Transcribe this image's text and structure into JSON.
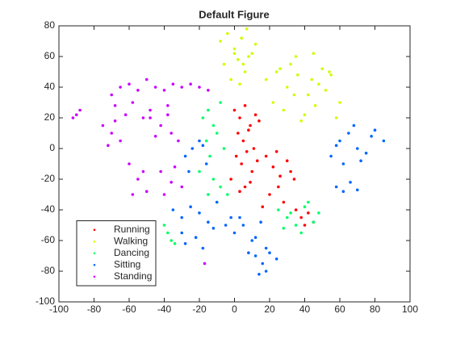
{
  "chart_data": {
    "type": "scatter",
    "title": "Default Figure",
    "xlim": [
      -100,
      100
    ],
    "xticks": [
      -100,
      -80,
      -60,
      -40,
      -20,
      0,
      20,
      40,
      60,
      80,
      100
    ],
    "ylim": [
      -100,
      80
    ],
    "yticks": [
      -100,
      -80,
      -60,
      -40,
      -20,
      0,
      20,
      40,
      60,
      80
    ],
    "legend": "southwest",
    "series": [
      {
        "name": "Running",
        "color": "#ff0000",
        "x": [
          0,
          3,
          6,
          9,
          12,
          2,
          5,
          8,
          11,
          14,
          1,
          4,
          7,
          10,
          13,
          -2,
          6,
          3,
          9,
          18,
          22,
          26,
          30,
          34,
          20,
          24,
          28,
          32,
          16,
          25,
          35,
          38,
          42,
          45,
          40
        ],
        "values": [
          25,
          20,
          28,
          15,
          22,
          10,
          5,
          12,
          0,
          18,
          -5,
          -10,
          -2,
          -15,
          -8,
          -20,
          -25,
          -28,
          -22,
          -5,
          -12,
          -18,
          -8,
          -20,
          -30,
          -2,
          -35,
          -15,
          -38,
          -25,
          -40,
          -45,
          -42,
          -48,
          -50
        ]
      },
      {
        "name": "Walking",
        "color": "#ccff00",
        "x": [
          -8,
          -4,
          0,
          4,
          8,
          12,
          -6,
          2,
          6,
          10,
          -2,
          3,
          7,
          0,
          5,
          18,
          24,
          30,
          36,
          42,
          48,
          54,
          60,
          22,
          28,
          34,
          40,
          46,
          52,
          58,
          26,
          32,
          38,
          44,
          50,
          35,
          45,
          55
        ],
        "values": [
          70,
          75,
          65,
          72,
          60,
          68,
          55,
          58,
          50,
          62,
          45,
          42,
          78,
          62,
          55,
          45,
          50,
          40,
          48,
          35,
          42,
          50,
          30,
          30,
          25,
          35,
          22,
          28,
          38,
          20,
          52,
          55,
          18,
          45,
          52,
          60,
          62,
          48
        ]
      },
      {
        "name": "Dancing",
        "color": "#00ff66",
        "x": [
          -18,
          -15,
          -12,
          -8,
          -16,
          -10,
          -14,
          -6,
          -20,
          -12,
          -8,
          -15,
          -10,
          -4,
          25,
          30,
          35,
          40,
          45,
          48,
          28,
          38,
          42,
          32,
          -40,
          -38,
          -36,
          -34
        ],
        "values": [
          20,
          25,
          15,
          30,
          5,
          10,
          -5,
          0,
          -15,
          -20,
          -25,
          -30,
          -35,
          -30,
          -40,
          -45,
          -50,
          -38,
          -48,
          -42,
          -52,
          -55,
          -35,
          -42,
          -50,
          -55,
          -60,
          -62
        ]
      },
      {
        "name": "Sitting",
        "color": "#0066ff",
        "x": [
          -28,
          -24,
          -20,
          -16,
          -26,
          -18,
          55,
          60,
          65,
          70,
          75,
          80,
          85,
          62,
          68,
          78,
          72,
          58,
          58,
          62,
          66,
          70,
          -35,
          -30,
          -25,
          -20,
          -15,
          -10,
          -5,
          -30,
          -22,
          -12,
          -2,
          -28,
          -18,
          0,
          5,
          10,
          15,
          18,
          8,
          12,
          3,
          12,
          16,
          20,
          24,
          18,
          14
        ],
        "values": [
          -5,
          0,
          5,
          -10,
          -15,
          2,
          -5,
          5,
          10,
          0,
          -3,
          12,
          5,
          -10,
          15,
          8,
          -8,
          2,
          -25,
          -28,
          -22,
          -27,
          -40,
          -45,
          -38,
          -42,
          -48,
          -35,
          -50,
          -55,
          -58,
          -52,
          -45,
          -62,
          -65,
          -55,
          -50,
          -60,
          -48,
          -65,
          -68,
          -58,
          -45,
          -70,
          -75,
          -68,
          -72,
          -80,
          -82
        ]
      },
      {
        "name": "Standing",
        "color": "#cc00ff",
        "x": [
          -70,
          -65,
          -60,
          -55,
          -50,
          -45,
          -40,
          -35,
          -30,
          -25,
          -20,
          -15,
          -68,
          -58,
          -48,
          -38,
          -62,
          -52,
          -75,
          -70,
          -65,
          -72,
          -68,
          -48,
          -42,
          -36,
          -32,
          -45,
          -38,
          -60,
          -55,
          -50,
          -58,
          -52,
          -42,
          -36,
          -30,
          -40,
          -34,
          -92,
          -88,
          -90,
          -17
        ],
        "values": [
          35,
          40,
          42,
          38,
          45,
          40,
          38,
          42,
          40,
          42,
          40,
          38,
          28,
          30,
          25,
          28,
          22,
          20,
          15,
          10,
          5,
          2,
          18,
          20,
          15,
          10,
          5,
          8,
          22,
          -10,
          -20,
          -28,
          -30,
          -15,
          -15,
          -22,
          -25,
          -30,
          -12,
          20,
          25,
          22,
          -75
        ]
      }
    ]
  }
}
